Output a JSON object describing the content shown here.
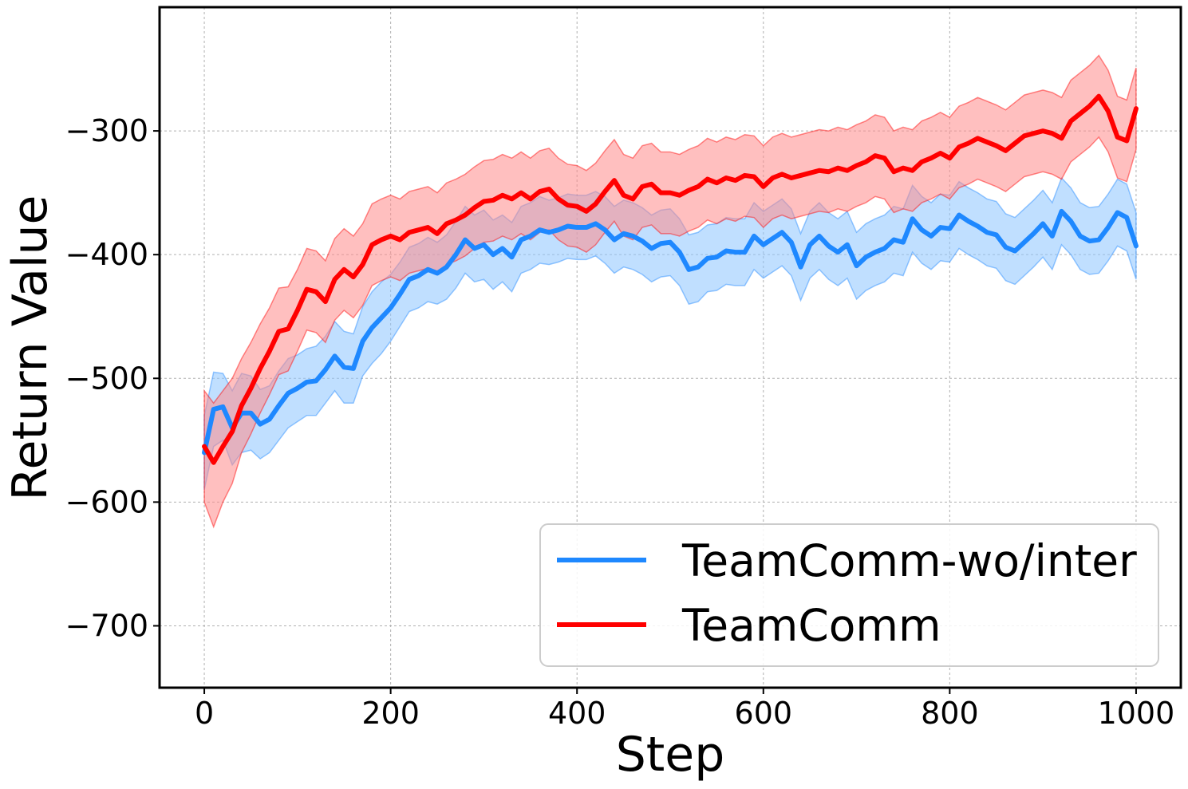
{
  "chart_data": {
    "type": "line",
    "title": "",
    "xlabel": "Step",
    "ylabel": "Return Value",
    "xlim": [
      -48,
      1048
    ],
    "ylim": [
      -750,
      -200
    ],
    "xticks": [
      0,
      200,
      400,
      600,
      800,
      1000
    ],
    "yticks": [
      -700,
      -600,
      -500,
      -400,
      -300
    ],
    "xtick_labels": [
      "0",
      "200",
      "400",
      "600",
      "800",
      "1000"
    ],
    "ytick_labels": [
      "−700",
      "−600",
      "−500",
      "−400",
      "−300"
    ],
    "grid": true,
    "legend_position": "lower-right",
    "series": [
      {
        "name": "TeamComm-wo/inter",
        "color": "#1e88ff",
        "band_color": "#8cc4ff",
        "x": [
          0,
          10,
          20,
          30,
          40,
          50,
          60,
          70,
          80,
          90,
          100,
          110,
          120,
          130,
          140,
          150,
          160,
          170,
          180,
          190,
          200,
          210,
          220,
          230,
          240,
          250,
          260,
          270,
          280,
          290,
          300,
          310,
          320,
          330,
          340,
          350,
          360,
          370,
          380,
          390,
          400,
          410,
          420,
          430,
          440,
          450,
          460,
          470,
          480,
          490,
          500,
          510,
          520,
          530,
          540,
          550,
          560,
          570,
          580,
          590,
          600,
          610,
          620,
          630,
          640,
          650,
          660,
          670,
          680,
          690,
          700,
          710,
          720,
          730,
          740,
          750,
          760,
          770,
          780,
          790,
          800,
          810,
          820,
          830,
          840,
          850,
          860,
          870,
          880,
          890,
          900,
          910,
          920,
          930,
          940,
          950,
          960,
          970,
          980,
          990,
          1000
        ],
        "y": [
          -560,
          -525,
          -523,
          -540,
          -528,
          -528,
          -537,
          -533,
          -522,
          -512,
          -508,
          -503,
          -502,
          -493,
          -482,
          -491,
          -492,
          -470,
          -459,
          -451,
          -443,
          -432,
          -420,
          -417,
          -412,
          -415,
          -410,
          -400,
          -388,
          -395,
          -392,
          -400,
          -395,
          -402,
          -388,
          -385,
          -380,
          -382,
          -380,
          -377,
          -378,
          -378,
          -375,
          -380,
          -388,
          -383,
          -385,
          -389,
          -395,
          -391,
          -390,
          -398,
          -412,
          -410,
          -403,
          -402,
          -397,
          -398,
          -398,
          -385,
          -392,
          -387,
          -382,
          -390,
          -410,
          -392,
          -385,
          -393,
          -398,
          -392,
          -409,
          -402,
          -398,
          -395,
          -388,
          -390,
          -371,
          -380,
          -385,
          -378,
          -379,
          -368,
          -373,
          -377,
          -382,
          -384,
          -394,
          -397,
          -390,
          -383,
          -375,
          -385,
          -365,
          -373,
          -385,
          -389,
          -388,
          -378,
          -366,
          -370,
          -393
        ],
        "band_low": [
          -590,
          -555,
          -550,
          -570,
          -560,
          -558,
          -565,
          -560,
          -550,
          -540,
          -535,
          -530,
          -530,
          -520,
          -510,
          -520,
          -520,
          -498,
          -488,
          -480,
          -470,
          -458,
          -446,
          -443,
          -438,
          -440,
          -436,
          -427,
          -415,
          -422,
          -420,
          -428,
          -422,
          -430,
          -415,
          -412,
          -407,
          -408,
          -406,
          -403,
          -404,
          -404,
          -401,
          -407,
          -415,
          -410,
          -412,
          -416,
          -422,
          -418,
          -417,
          -425,
          -440,
          -438,
          -430,
          -429,
          -424,
          -425,
          -425,
          -412,
          -419,
          -414,
          -409,
          -417,
          -437,
          -419,
          -412,
          -420,
          -425,
          -419,
          -436,
          -429,
          -425,
          -422,
          -415,
          -417,
          -398,
          -407,
          -412,
          -405,
          -406,
          -395,
          -400,
          -404,
          -409,
          -411,
          -421,
          -424,
          -417,
          -410,
          -402,
          -412,
          -392,
          -400,
          -412,
          -416,
          -415,
          -405,
          -393,
          -397,
          -420
        ],
        "band_high": [
          -530,
          -495,
          -496,
          -510,
          -496,
          -498,
          -509,
          -506,
          -494,
          -484,
          -481,
          -476,
          -474,
          -466,
          -454,
          -462,
          -464,
          -442,
          -430,
          -422,
          -416,
          -406,
          -394,
          -391,
          -386,
          -390,
          -384,
          -373,
          -361,
          -368,
          -364,
          -372,
          -368,
          -374,
          -361,
          -358,
          -353,
          -356,
          -354,
          -351,
          -352,
          -352,
          -349,
          -353,
          -361,
          -356,
          -358,
          -362,
          -368,
          -364,
          -363,
          -371,
          -384,
          -382,
          -376,
          -375,
          -370,
          -371,
          -371,
          -358,
          -365,
          -360,
          -355,
          -363,
          -383,
          -365,
          -358,
          -366,
          -371,
          -365,
          -382,
          -375,
          -371,
          -368,
          -361,
          -363,
          -344,
          -353,
          -358,
          -351,
          -352,
          -341,
          -346,
          -350,
          -355,
          -357,
          -367,
          -370,
          -363,
          -356,
          -348,
          -358,
          -338,
          -346,
          -358,
          -362,
          -361,
          -351,
          -339,
          -343,
          -366
        ]
      },
      {
        "name": "TeamComm",
        "color": "#ff0000",
        "band_color": "#ff8a8a",
        "x": [
          0,
          10,
          20,
          30,
          40,
          50,
          60,
          70,
          80,
          90,
          100,
          110,
          120,
          130,
          140,
          150,
          160,
          170,
          180,
          190,
          200,
          210,
          220,
          230,
          240,
          250,
          260,
          270,
          280,
          290,
          300,
          310,
          320,
          330,
          340,
          350,
          360,
          370,
          380,
          390,
          400,
          410,
          420,
          430,
          440,
          450,
          460,
          470,
          480,
          490,
          500,
          510,
          520,
          530,
          540,
          550,
          560,
          570,
          580,
          590,
          600,
          610,
          620,
          630,
          640,
          650,
          660,
          670,
          680,
          690,
          700,
          710,
          720,
          730,
          740,
          750,
          760,
          770,
          780,
          790,
          800,
          810,
          820,
          830,
          840,
          850,
          860,
          870,
          880,
          890,
          900,
          910,
          920,
          930,
          940,
          950,
          960,
          970,
          980,
          990,
          1000
        ],
        "y": [
          -555,
          -568,
          -555,
          -543,
          -522,
          -508,
          -492,
          -478,
          -462,
          -460,
          -445,
          -428,
          -430,
          -438,
          -420,
          -412,
          -418,
          -408,
          -392,
          -388,
          -385,
          -388,
          -382,
          -380,
          -378,
          -383,
          -375,
          -372,
          -368,
          -362,
          -357,
          -356,
          -352,
          -355,
          -350,
          -355,
          -349,
          -347,
          -355,
          -360,
          -361,
          -365,
          -359,
          -349,
          -340,
          -352,
          -355,
          -345,
          -343,
          -350,
          -350,
          -352,
          -348,
          -345,
          -339,
          -342,
          -338,
          -340,
          -336,
          -337,
          -345,
          -338,
          -335,
          -338,
          -336,
          -334,
          -332,
          -333,
          -330,
          -332,
          -328,
          -325,
          -320,
          -322,
          -333,
          -330,
          -332,
          -325,
          -322,
          -318,
          -322,
          -313,
          -310,
          -306,
          -309,
          -312,
          -316,
          -310,
          -304,
          -302,
          -300,
          -302,
          -306,
          -292,
          -286,
          -280,
          -272,
          -284,
          -305,
          -308,
          -282
        ],
        "band_low": [
          -600,
          -620,
          -600,
          -585,
          -560,
          -545,
          -528,
          -513,
          -497,
          -494,
          -478,
          -461,
          -463,
          -471,
          -453,
          -445,
          -451,
          -441,
          -425,
          -421,
          -418,
          -421,
          -415,
          -413,
          -411,
          -416,
          -408,
          -405,
          -401,
          -395,
          -390,
          -389,
          -385,
          -388,
          -383,
          -388,
          -382,
          -380,
          -388,
          -393,
          -394,
          -398,
          -392,
          -382,
          -373,
          -385,
          -388,
          -378,
          -376,
          -383,
          -383,
          -385,
          -381,
          -378,
          -372,
          -375,
          -371,
          -373,
          -369,
          -370,
          -378,
          -371,
          -368,
          -371,
          -369,
          -367,
          -365,
          -366,
          -363,
          -365,
          -361,
          -358,
          -353,
          -355,
          -366,
          -363,
          -365,
          -358,
          -355,
          -351,
          -355,
          -346,
          -343,
          -339,
          -342,
          -345,
          -349,
          -343,
          -337,
          -335,
          -333,
          -335,
          -339,
          -325,
          -319,
          -313,
          -305,
          -317,
          -338,
          -341,
          -315
        ],
        "band_high": [
          -510,
          -520,
          -510,
          -500,
          -484,
          -471,
          -456,
          -443,
          -427,
          -426,
          -412,
          -395,
          -397,
          -405,
          -387,
          -379,
          -385,
          -375,
          -359,
          -355,
          -352,
          -355,
          -349,
          -347,
          -345,
          -350,
          -342,
          -339,
          -335,
          -329,
          -324,
          -323,
          -319,
          -322,
          -317,
          -322,
          -316,
          -314,
          -322,
          -327,
          -328,
          -332,
          -326,
          -316,
          -307,
          -319,
          -322,
          -312,
          -310,
          -317,
          -317,
          -319,
          -315,
          -312,
          -306,
          -309,
          -305,
          -307,
          -303,
          -304,
          -312,
          -305,
          -302,
          -305,
          -303,
          -301,
          -299,
          -300,
          -297,
          -299,
          -295,
          -292,
          -287,
          -289,
          -300,
          -297,
          -299,
          -292,
          -289,
          -285,
          -289,
          -280,
          -277,
          -273,
          -276,
          -279,
          -283,
          -277,
          -271,
          -269,
          -267,
          -269,
          -273,
          -259,
          -253,
          -247,
          -239,
          -251,
          -272,
          -275,
          -249
        ]
      }
    ]
  }
}
